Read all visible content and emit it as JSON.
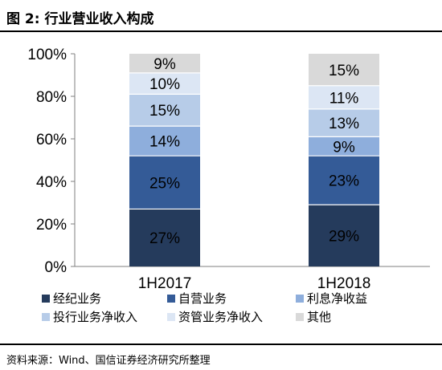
{
  "figure": {
    "title": "图 2:  行业营业收入构成",
    "source": "资料来源：Wind、国信证券经济研究所整理"
  },
  "chart_data": {
    "type": "bar",
    "stacked": true,
    "percent": true,
    "categories": [
      "1H2017",
      "1H2018"
    ],
    "ylim": [
      0,
      100
    ],
    "yticks": [
      0,
      20,
      40,
      60,
      80,
      100
    ],
    "ytick_labels": [
      "0%",
      "20%",
      "40%",
      "60%",
      "80%",
      "100%"
    ],
    "grid": false,
    "legend_position": "bottom",
    "series": [
      {
        "name": "经纪业务",
        "values": [
          27,
          29
        ],
        "labels": [
          "27%",
          "29%"
        ],
        "color": "#253B5C",
        "label_color": "#000000"
      },
      {
        "name": "自营业务",
        "values": [
          25,
          23
        ],
        "labels": [
          "25%",
          "23%"
        ],
        "color": "#345B97",
        "label_color": "#000000"
      },
      {
        "name": "利息净收益",
        "values": [
          14,
          9
        ],
        "labels": [
          "14%",
          "9%"
        ],
        "color": "#8EAEDC",
        "label_color": "#000000"
      },
      {
        "name": "投行业务净收入",
        "values": [
          15,
          13
        ],
        "labels": [
          "15%",
          "13%"
        ],
        "color": "#B7CCE8",
        "label_color": "#000000"
      },
      {
        "name": "资管业务净收入",
        "values": [
          10,
          11
        ],
        "labels": [
          "10%",
          "11%"
        ],
        "color": "#DCE6F4",
        "label_color": "#000000"
      },
      {
        "name": "其他",
        "values": [
          9,
          15
        ],
        "labels": [
          "9%",
          "15%"
        ],
        "color": "#D9D9D9",
        "label_color": "#000000"
      }
    ]
  }
}
